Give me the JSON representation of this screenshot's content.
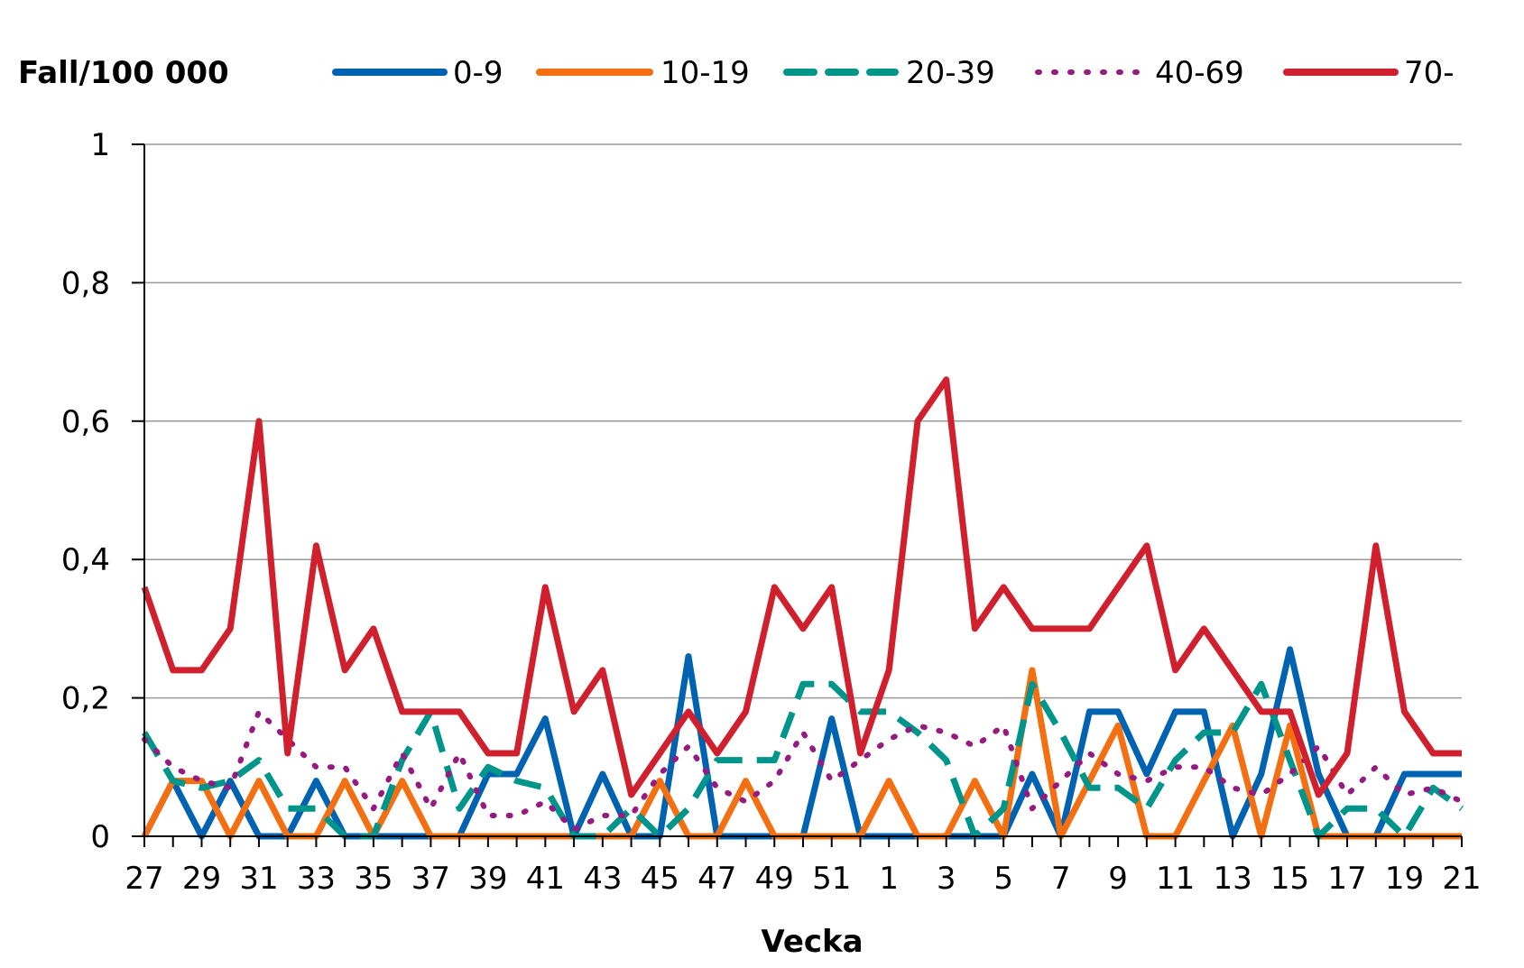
{
  "chart_data": {
    "type": "line",
    "ylabel": "Fall/100 000",
    "xlabel": "Vecka",
    "ylim": [
      0,
      1
    ],
    "y_ticks": [
      "0",
      "0,2",
      "0,4",
      "0,6",
      "0,8",
      "1"
    ],
    "grid": "horizontal",
    "legend_position": "top",
    "x": [
      "27",
      "28",
      "29",
      "30",
      "31",
      "32",
      "33",
      "34",
      "35",
      "36",
      "37",
      "38",
      "39",
      "40",
      "41",
      "42",
      "43",
      "44",
      "45",
      "46",
      "47",
      "48",
      "49",
      "50",
      "51",
      "52",
      "1",
      "2",
      "3",
      "4",
      "5",
      "6",
      "7",
      "8",
      "9",
      "10",
      "11",
      "12",
      "13",
      "14",
      "15",
      "16",
      "17",
      "18",
      "19",
      "20",
      "21"
    ],
    "x_tick_labels": [
      "27",
      "29",
      "31",
      "33",
      "35",
      "37",
      "39",
      "41",
      "43",
      "45",
      "47",
      "49",
      "51",
      "1",
      "3",
      "5",
      "7",
      "9",
      "11",
      "13",
      "15",
      "17",
      "19",
      "21"
    ],
    "series": [
      {
        "name": "0-9",
        "color": "#0063B1",
        "style": "solid",
        "values": [
          0,
          0.08,
          0,
          0.08,
          0,
          0,
          0.08,
          0,
          0,
          0,
          0,
          0,
          0.09,
          0.09,
          0.17,
          0,
          0.09,
          0,
          0,
          0.26,
          0,
          0,
          0,
          0,
          0.17,
          0,
          0,
          0,
          0,
          0,
          0,
          0.09,
          0,
          0.18,
          0.18,
          0.09,
          0.18,
          0.18,
          0,
          0.09,
          0.27,
          0.09,
          0,
          0,
          0.09,
          0.09,
          0.09
        ]
      },
      {
        "name": "10-19",
        "color": "#F36F11",
        "style": "solid",
        "values": [
          0,
          0.08,
          0.08,
          0,
          0.08,
          0,
          0,
          0.08,
          0,
          0.08,
          0,
          0,
          0,
          0,
          0,
          0,
          0,
          0,
          0.08,
          0,
          0,
          0.08,
          0,
          0,
          0,
          0,
          0.08,
          0,
          0,
          0.08,
          0,
          0.24,
          0,
          0.08,
          0.16,
          0,
          0,
          0.08,
          0.16,
          0,
          0.16,
          0,
          0,
          0,
          0,
          0,
          0
        ]
      },
      {
        "name": "20-39",
        "color": "#00958B",
        "style": "dashed",
        "values": [
          0.15,
          0.08,
          0.07,
          0.08,
          0.11,
          0.04,
          0.04,
          0,
          0,
          0.11,
          0.18,
          0.04,
          0.1,
          0.08,
          0.07,
          0,
          0,
          0.04,
          0,
          0.04,
          0.11,
          0.11,
          0.11,
          0.22,
          0.22,
          0.18,
          0.18,
          0.15,
          0.11,
          0,
          0.04,
          0.22,
          0.15,
          0.07,
          0.07,
          0.04,
          0.11,
          0.15,
          0.15,
          0.22,
          0.11,
          0,
          0.04,
          0.04,
          0,
          0.07,
          0.04
        ]
      },
      {
        "name": "40-69",
        "color": "#951B81",
        "style": "dotted",
        "values": [
          0.14,
          0.1,
          0.08,
          0.07,
          0.18,
          0.14,
          0.1,
          0.1,
          0.04,
          0.12,
          0.04,
          0.12,
          0.03,
          0.03,
          0.05,
          0.01,
          0.03,
          0.03,
          0.09,
          0.13,
          0.07,
          0.05,
          0.08,
          0.15,
          0.08,
          0.11,
          0.14,
          0.16,
          0.15,
          0.13,
          0.16,
          0.04,
          0.08,
          0.12,
          0.09,
          0.08,
          0.1,
          0.1,
          0.07,
          0.06,
          0.09,
          0.13,
          0.06,
          0.1,
          0.06,
          0.07,
          0.05
        ]
      },
      {
        "name": "70-",
        "color": "#D0202D",
        "style": "solid",
        "values": [
          0.36,
          0.24,
          0.24,
          0.3,
          0.6,
          0.12,
          0.42,
          0.24,
          0.3,
          0.18,
          0.18,
          0.18,
          0.12,
          0.12,
          0.36,
          0.18,
          0.24,
          0.06,
          0.12,
          0.18,
          0.12,
          0.18,
          0.36,
          0.3,
          0.36,
          0.12,
          0.24,
          0.6,
          0.66,
          0.3,
          0.36,
          0.3,
          0.3,
          0.3,
          0.36,
          0.42,
          0.24,
          0.3,
          0.24,
          0.18,
          0.18,
          0.06,
          0.12,
          0.42,
          0.18,
          0.12,
          0.12
        ]
      }
    ]
  }
}
